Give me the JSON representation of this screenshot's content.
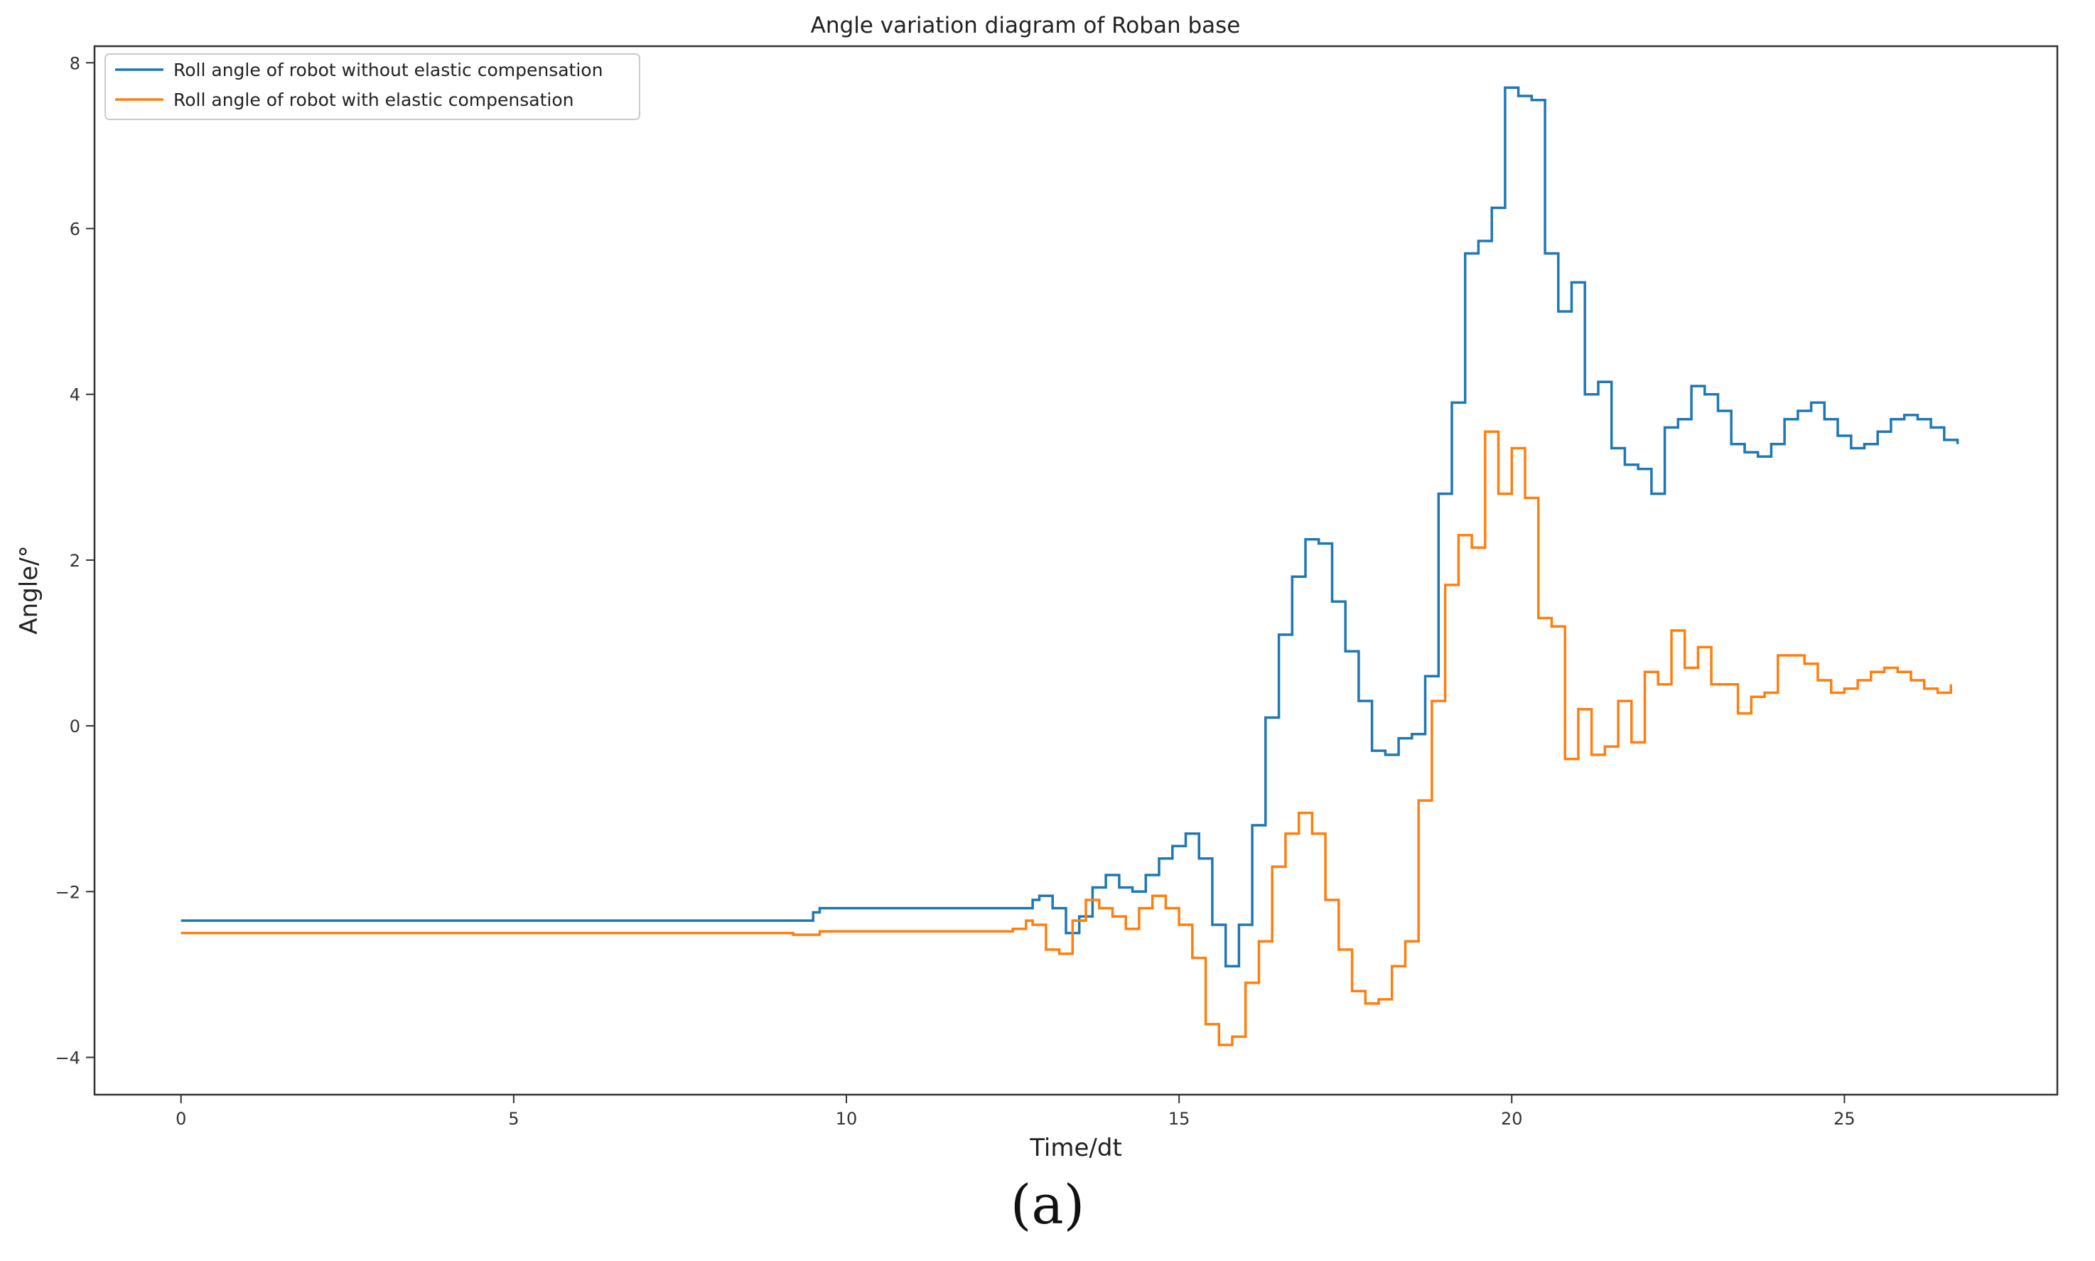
{
  "chart_data": {
    "type": "line",
    "title": "Angle variation diagram of Roban base",
    "xlabel": "Time/dt",
    "ylabel": "Angle/°",
    "xlim": [
      -1.3,
      28.2
    ],
    "ylim": [
      -4.45,
      8.2
    ],
    "xticks": [
      0,
      5,
      10,
      15,
      20,
      25
    ],
    "xtick_labels": [
      "0",
      "5",
      "10",
      "15",
      "20",
      "25"
    ],
    "yticks": [
      -4,
      -2,
      0,
      2,
      4,
      6,
      8
    ],
    "ytick_labels": [
      "−4",
      "−2",
      "0",
      "2",
      "4",
      "6",
      "8"
    ],
    "grid": false,
    "legend_position": "top-left",
    "caption": "(a)",
    "series": [
      {
        "name": "Roll angle of robot without elastic compensation",
        "color": "#1f77b4",
        "step": true,
        "x": [
          0,
          9.4,
          9.5,
          9.6,
          12.6,
          12.8,
          12.9,
          13.1,
          13.3,
          13.5,
          13.7,
          13.9,
          14.1,
          14.3,
          14.5,
          14.7,
          14.9,
          15.1,
          15.3,
          15.5,
          15.7,
          15.9,
          16.1,
          16.3,
          16.5,
          16.7,
          16.9,
          17.1,
          17.3,
          17.5,
          17.7,
          17.9,
          18.1,
          18.3,
          18.5,
          18.7,
          18.9,
          19.1,
          19.3,
          19.5,
          19.7,
          19.9,
          20.1,
          20.3,
          20.5,
          20.7,
          20.9,
          21.1,
          21.3,
          21.5,
          21.7,
          21.9,
          22.1,
          22.3,
          22.5,
          22.7,
          22.9,
          23.1,
          23.3,
          23.5,
          23.7,
          23.9,
          24.1,
          24.3,
          24.5,
          24.7,
          24.9,
          25.1,
          25.3,
          25.5,
          25.7,
          25.9,
          26.1,
          26.3,
          26.5,
          26.7
        ],
        "y": [
          -2.35,
          -2.35,
          -2.25,
          -2.2,
          -2.2,
          -2.1,
          -2.05,
          -2.2,
          -2.5,
          -2.3,
          -1.95,
          -1.8,
          -1.95,
          -2.0,
          -1.8,
          -1.6,
          -1.45,
          -1.3,
          -1.6,
          -2.4,
          -2.9,
          -2.4,
          -1.2,
          0.1,
          1.1,
          1.8,
          2.25,
          2.2,
          1.5,
          0.9,
          0.3,
          -0.3,
          -0.35,
          -0.15,
          -0.1,
          0.6,
          2.8,
          3.9,
          5.7,
          5.85,
          6.25,
          7.7,
          7.6,
          7.55,
          5.7,
          5.0,
          5.35,
          4.0,
          4.15,
          3.35,
          3.15,
          3.1,
          2.8,
          3.6,
          3.7,
          4.1,
          4.0,
          3.8,
          3.4,
          3.3,
          3.25,
          3.4,
          3.7,
          3.8,
          3.9,
          3.7,
          3.5,
          3.35,
          3.4,
          3.55,
          3.7,
          3.75,
          3.7,
          3.6,
          3.45,
          3.4
        ]
      },
      {
        "name": "Roll angle of robot with elastic compensation",
        "color": "#ff7f0e",
        "step": true,
        "x": [
          0,
          9.2,
          9.6,
          12.5,
          12.7,
          12.8,
          13.0,
          13.2,
          13.4,
          13.6,
          13.8,
          14.0,
          14.2,
          14.4,
          14.6,
          14.8,
          15.0,
          15.2,
          15.4,
          15.6,
          15.8,
          16.0,
          16.2,
          16.4,
          16.6,
          16.8,
          17.0,
          17.2,
          17.4,
          17.6,
          17.8,
          18.0,
          18.2,
          18.4,
          18.6,
          18.8,
          19.0,
          19.2,
          19.4,
          19.6,
          19.8,
          20.0,
          20.2,
          20.4,
          20.6,
          20.8,
          21.0,
          21.2,
          21.4,
          21.6,
          21.8,
          22.0,
          22.2,
          22.4,
          22.6,
          22.8,
          23.0,
          23.2,
          23.4,
          23.6,
          23.8,
          24.0,
          24.2,
          24.4,
          24.6,
          24.8,
          25.0,
          25.2,
          25.4,
          25.6,
          25.8,
          26.0,
          26.2,
          26.4,
          26.6
        ],
        "y": [
          -2.5,
          -2.52,
          -2.48,
          -2.45,
          -2.35,
          -2.4,
          -2.7,
          -2.75,
          -2.35,
          -2.1,
          -2.2,
          -2.3,
          -2.45,
          -2.2,
          -2.05,
          -2.2,
          -2.4,
          -2.8,
          -3.6,
          -3.85,
          -3.75,
          -3.1,
          -2.6,
          -1.7,
          -1.3,
          -1.05,
          -1.3,
          -2.1,
          -2.7,
          -3.2,
          -3.35,
          -3.3,
          -2.9,
          -2.6,
          -0.9,
          0.3,
          1.7,
          2.3,
          2.15,
          3.55,
          2.8,
          3.35,
          2.75,
          1.3,
          1.2,
          -0.4,
          0.2,
          -0.35,
          -0.25,
          0.3,
          -0.2,
          0.65,
          0.5,
          1.15,
          0.7,
          0.95,
          0.5,
          0.5,
          0.15,
          0.35,
          0.4,
          0.85,
          0.85,
          0.75,
          0.55,
          0.4,
          0.45,
          0.55,
          0.65,
          0.7,
          0.65,
          0.55,
          0.45,
          0.4,
          0.5
        ]
      }
    ]
  }
}
